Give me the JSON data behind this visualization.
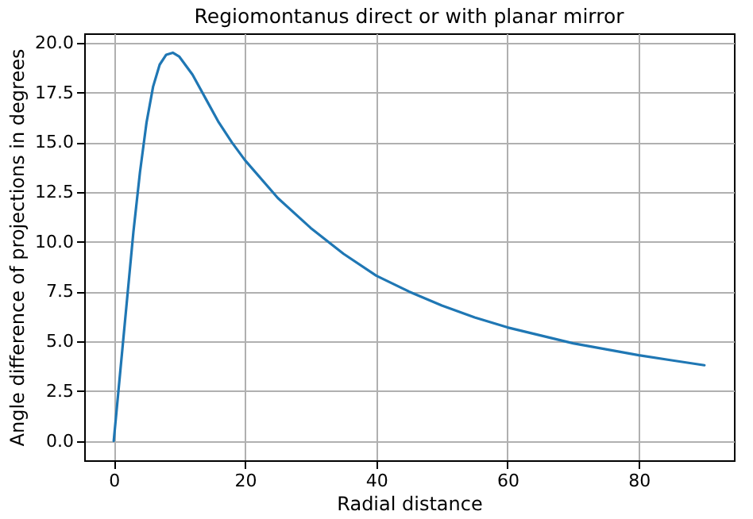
{
  "chart_data": {
    "type": "line",
    "title": "Regiomontanus direct or with planar mirror",
    "xlabel": "Radial distance",
    "ylabel": "Angle difference of projections in degrees",
    "x": [
      0,
      1,
      2,
      3,
      4,
      5,
      6,
      7,
      8,
      9,
      10,
      12,
      14,
      16,
      18,
      20,
      25,
      30,
      35,
      40,
      45,
      50,
      55,
      60,
      65,
      70,
      75,
      80,
      85,
      90
    ],
    "series": [
      {
        "color": "#1f77b4",
        "values": [
          0,
          3.5,
          7,
          10.5,
          13.5,
          16,
          17.8,
          18.9,
          19.4,
          19.5,
          19.3,
          18.4,
          17.2,
          16,
          15,
          14.1,
          12.2,
          10.7,
          9.4,
          8.3,
          7.5,
          6.8,
          6.2,
          5.7,
          5.3,
          4.9,
          4.6,
          4.3,
          4.05,
          3.8
        ]
      }
    ],
    "xlim": [
      -4.5,
      94.5
    ],
    "ylim": [
      -0.975,
      20.475
    ],
    "xticks": [
      0,
      20,
      40,
      60,
      80
    ],
    "yticks": [
      {
        "value": 0,
        "label": "0.0"
      },
      {
        "value": 2.5,
        "label": "2.5"
      },
      {
        "value": 5,
        "label": "5.0"
      },
      {
        "value": 7.5,
        "label": "7.5"
      },
      {
        "value": 10,
        "label": "10.0"
      },
      {
        "value": 12.5,
        "label": "12.5"
      },
      {
        "value": 15,
        "label": "15.0"
      },
      {
        "value": 17.5,
        "label": "17.5"
      },
      {
        "value": 20,
        "label": "20.0"
      }
    ],
    "grid": true,
    "line_style": "solid"
  }
}
